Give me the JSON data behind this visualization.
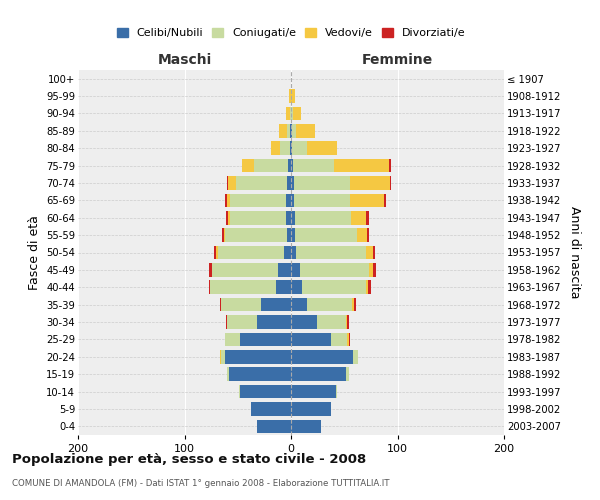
{
  "age_groups": [
    "0-4",
    "5-9",
    "10-14",
    "15-19",
    "20-24",
    "25-29",
    "30-34",
    "35-39",
    "40-44",
    "45-49",
    "50-54",
    "55-59",
    "60-64",
    "65-69",
    "70-74",
    "75-79",
    "80-84",
    "85-89",
    "90-94",
    "95-99",
    "100+"
  ],
  "birth_years": [
    "2003-2007",
    "1998-2002",
    "1993-1997",
    "1988-1992",
    "1983-1987",
    "1978-1982",
    "1973-1977",
    "1968-1972",
    "1963-1967",
    "1958-1962",
    "1953-1957",
    "1948-1952",
    "1943-1947",
    "1938-1942",
    "1933-1937",
    "1928-1932",
    "1923-1927",
    "1918-1922",
    "1913-1917",
    "1908-1912",
    "≤ 1907"
  ],
  "colors": {
    "celibe": "#3a6ea8",
    "coniugato": "#c8dba0",
    "vedovo": "#f5c842",
    "divorziato": "#cc2222"
  },
  "maschi": {
    "celibe": [
      32,
      38,
      48,
      58,
      62,
      48,
      32,
      28,
      14,
      12,
      7,
      4,
      5,
      5,
      4,
      3,
      1,
      1,
      0,
      0,
      0
    ],
    "coniugato": [
      0,
      0,
      1,
      2,
      4,
      14,
      28,
      38,
      62,
      62,
      62,
      58,
      52,
      52,
      48,
      32,
      9,
      3,
      1,
      0,
      0
    ],
    "vedovo": [
      0,
      0,
      0,
      0,
      1,
      0,
      0,
      0,
      0,
      0,
      1,
      1,
      2,
      3,
      7,
      11,
      9,
      7,
      4,
      2,
      0
    ],
    "divorziato": [
      0,
      0,
      0,
      0,
      0,
      0,
      1,
      1,
      1,
      3,
      2,
      2,
      2,
      2,
      1,
      0,
      0,
      0,
      0,
      0,
      0
    ]
  },
  "femmine": {
    "nubile": [
      28,
      38,
      42,
      52,
      58,
      38,
      24,
      15,
      10,
      8,
      5,
      4,
      4,
      3,
      3,
      2,
      1,
      1,
      0,
      0,
      0
    ],
    "coniugata": [
      0,
      0,
      1,
      2,
      5,
      15,
      28,
      42,
      60,
      65,
      65,
      58,
      52,
      52,
      52,
      38,
      14,
      4,
      2,
      0,
      0
    ],
    "vedova": [
      0,
      0,
      0,
      0,
      0,
      1,
      1,
      2,
      2,
      4,
      7,
      9,
      14,
      32,
      38,
      52,
      28,
      18,
      7,
      4,
      0
    ],
    "divorziata": [
      0,
      0,
      0,
      0,
      0,
      1,
      1,
      2,
      3,
      3,
      2,
      2,
      3,
      2,
      1,
      2,
      0,
      0,
      0,
      0,
      0
    ]
  },
  "xlim": [
    -200,
    200
  ],
  "xticks": [
    -200,
    -100,
    0,
    100,
    200
  ],
  "xticklabels": [
    "200",
    "100",
    "0",
    "100",
    "200"
  ],
  "title": "Popolazione per età, sesso e stato civile - 2008",
  "subtitle": "COMUNE DI AMANDOLA (FM) - Dati ISTAT 1° gennaio 2008 - Elaborazione TUTTITALIA.IT",
  "ylabel_left": "Fasce di età",
  "ylabel_right": "Anni di nascita",
  "label_maschi": "Maschi",
  "label_femmine": "Femmine",
  "legend_labels": [
    "Celibi/Nubili",
    "Coniugati/e",
    "Vedovi/e",
    "Divorziati/e"
  ]
}
